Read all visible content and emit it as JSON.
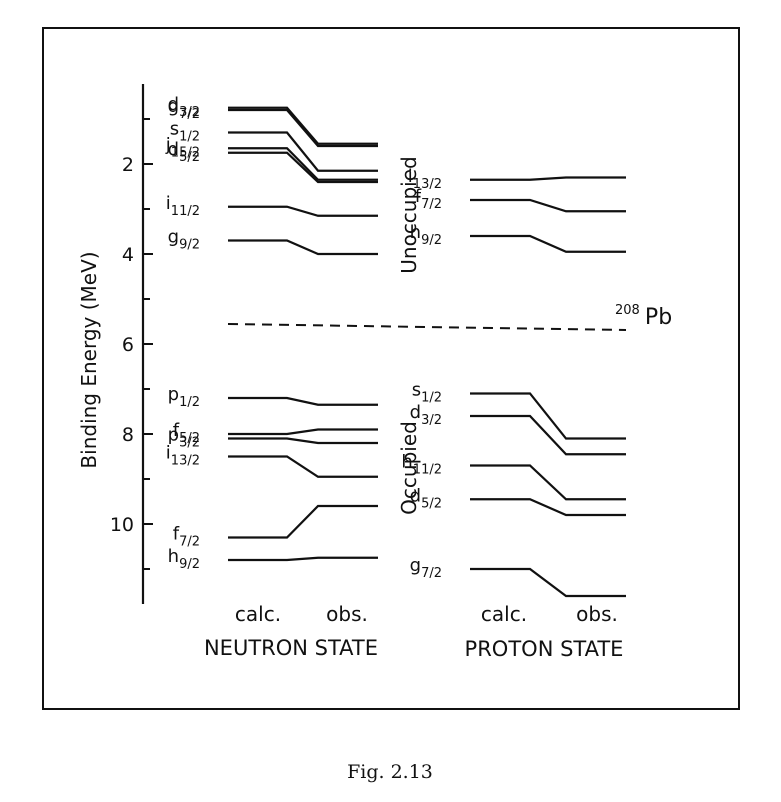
{
  "figure": {
    "caption": "Fig. 2.13",
    "nucleus_mass": "208",
    "nucleus_symbol": "Pb"
  },
  "axis": {
    "label": "Binding Energy (MeV)",
    "ticks": [
      "2",
      "4",
      "6",
      "8",
      "10"
    ],
    "range": [
      0.6,
      11.8
    ],
    "minor_step": 1
  },
  "regions": {
    "unoccupied": "Unoccupied",
    "occupied": "Occupied"
  },
  "columns": {
    "calc": "calc.",
    "obs": "obs."
  },
  "panels": {
    "neutron": "NEUTRON STATE",
    "proton": "PROTON STATE"
  },
  "fermi_energy": 5.6,
  "chart_data": {
    "type": "level diagram",
    "x_categories": [
      "calc.",
      "obs."
    ],
    "y_label": "Binding Energy (MeV)",
    "y_axis_inverted": true,
    "neutron_state": {
      "unoccupied": [
        {
          "n": "d",
          "j": "3/2",
          "calc": 0.75,
          "obs": 1.55
        },
        {
          "n": "g",
          "j": "7/2",
          "calc": 0.8,
          "obs": 1.6
        },
        {
          "n": "s",
          "j": "1/2",
          "calc": 1.3,
          "obs": 2.15
        },
        {
          "n": "j",
          "j": "15/2",
          "calc": 1.65,
          "obs": 2.35
        },
        {
          "n": "d",
          "j": "5/2",
          "calc": 1.75,
          "obs": 2.4
        },
        {
          "n": "i",
          "j": "11/2",
          "calc": 2.95,
          "obs": 3.15
        },
        {
          "n": "g",
          "j": "9/2",
          "calc": 3.7,
          "obs": 4.0
        }
      ],
      "occupied": [
        {
          "n": "p",
          "j": "1/2",
          "calc": 7.2,
          "obs": 7.35
        },
        {
          "n": "f",
          "j": "5/2",
          "calc": 8.0,
          "obs": 7.9
        },
        {
          "n": "p",
          "j": "3/2",
          "calc": 8.1,
          "obs": 8.2
        },
        {
          "n": "i",
          "j": "13/2",
          "calc": 8.5,
          "obs": 8.95
        },
        {
          "n": "f",
          "j": "7/2",
          "calc": 10.3,
          "obs": 9.6
        },
        {
          "n": "h",
          "j": "9/2",
          "calc": 10.8,
          "obs": 10.75
        }
      ]
    },
    "proton_state": {
      "unoccupied": [
        {
          "n": "i",
          "j": "13/2",
          "calc": 2.35,
          "obs": 2.3
        },
        {
          "n": "f",
          "j": "7/2",
          "calc": 2.8,
          "obs": 3.05
        },
        {
          "n": "h",
          "j": "9/2",
          "calc": 3.6,
          "obs": 3.95
        }
      ],
      "occupied": [
        {
          "n": "s",
          "j": "1/2",
          "calc": 7.1,
          "obs": 8.1
        },
        {
          "n": "d",
          "j": "3/2",
          "calc": 7.6,
          "obs": 8.45
        },
        {
          "n": "h",
          "j": "11/2",
          "calc": 8.7,
          "obs": 9.45
        },
        {
          "n": "d",
          "j": "5/2",
          "calc": 9.45,
          "obs": 9.8
        },
        {
          "n": "g",
          "j": "7/2",
          "calc": 11.0,
          "obs": 11.6
        }
      ]
    }
  }
}
